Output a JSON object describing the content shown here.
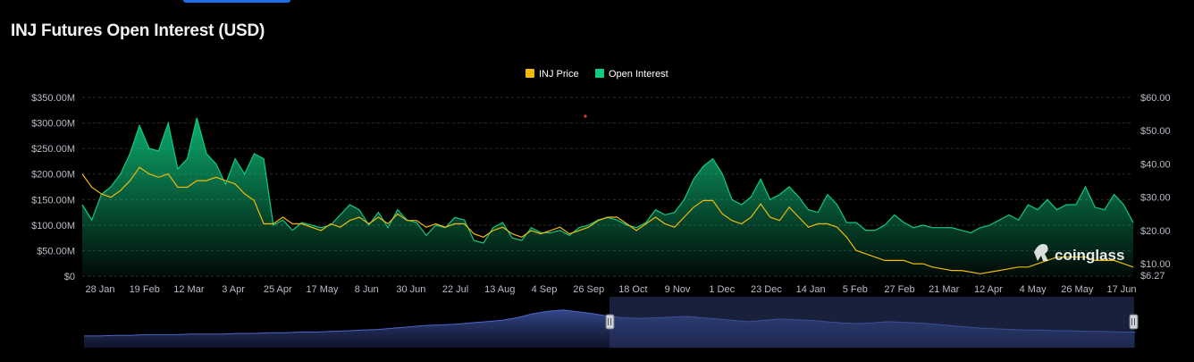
{
  "title": "INJ Futures Open Interest (USD)",
  "watermark": "coinglass",
  "colors": {
    "price": "#f0b90b",
    "open_interest": "#0ecb81",
    "grid": "#2a2d34",
    "navigator_fill": "#1f2a4d"
  },
  "chart_data": {
    "type": "area",
    "legend": [
      "INJ Price",
      "Open Interest"
    ],
    "legend_position": "top-center",
    "x_tick_labels": [
      "28 Jan",
      "19 Feb",
      "12 Mar",
      "3 Apr",
      "25 Apr",
      "17 May",
      "8 Jun",
      "30 Jun",
      "22 Jul",
      "13 Aug",
      "4 Sep",
      "26 Sep",
      "18 Oct",
      "9 Nov",
      "1 Dec",
      "23 Dec",
      "14 Jan",
      "5 Feb",
      "27 Feb",
      "21 Mar",
      "12 Apr",
      "4 May",
      "26 May",
      "17 Jun"
    ],
    "y_left_ticks": [
      "$0",
      "$50.00M",
      "$100.00M",
      "$150.00M",
      "$200.00M",
      "$250.00M",
      "$300.00M",
      "$350.00M"
    ],
    "y_right_ticks": [
      "$6.27",
      "$10.00",
      "$20.00",
      "$30.00",
      "$40.00",
      "$50.00",
      "$60.00"
    ],
    "ylim_left": [
      0,
      350
    ],
    "ylim_right": [
      6.27,
      60
    ],
    "grid": true,
    "series": [
      {
        "name": "Open Interest",
        "axis": "left",
        "unit": "USD millions",
        "values": [
          140,
          110,
          160,
          175,
          200,
          240,
          295,
          250,
          245,
          300,
          210,
          230,
          310,
          240,
          220,
          180,
          230,
          200,
          240,
          230,
          100,
          110,
          90,
          105,
          100,
          95,
          100,
          120,
          140,
          130,
          100,
          125,
          95,
          130,
          110,
          105,
          80,
          100,
          95,
          115,
          110,
          70,
          65,
          95,
          105,
          75,
          70,
          95,
          85,
          85,
          90,
          80,
          95,
          100,
          110,
          115,
          110,
          100,
          95,
          105,
          130,
          120,
          125,
          150,
          190,
          215,
          230,
          200,
          150,
          140,
          155,
          190,
          150,
          160,
          175,
          155,
          130,
          125,
          160,
          140,
          105,
          105,
          90,
          90,
          100,
          120,
          105,
          95,
          100,
          95,
          95,
          95,
          90,
          85,
          95,
          100,
          110,
          120,
          110,
          140,
          130,
          150,
          130,
          140,
          140,
          175,
          135,
          130,
          160,
          140,
          105
        ]
      },
      {
        "name": "INJ Price",
        "axis": "right",
        "unit": "USD",
        "values": [
          37,
          33,
          31,
          30,
          32,
          35,
          39,
          37,
          36,
          37,
          33,
          33,
          35,
          35,
          36,
          35,
          34,
          31,
          29,
          22,
          22,
          24,
          22,
          22,
          21,
          20,
          22,
          21,
          23,
          24,
          22,
          24,
          22,
          25,
          23,
          23,
          21,
          22,
          21,
          22,
          22,
          19,
          18,
          20,
          21,
          19,
          18,
          20,
          19,
          20,
          21,
          19,
          20,
          21,
          23,
          24,
          24,
          22,
          20,
          22,
          24,
          22,
          21,
          24,
          27,
          29,
          29,
          25,
          23,
          22,
          24,
          28,
          24,
          23,
          27,
          24,
          21,
          22,
          22,
          21,
          18,
          14,
          13,
          12,
          11,
          11,
          11,
          10,
          10,
          9,
          8.5,
          8,
          8,
          7.5,
          7,
          7.5,
          8,
          8.5,
          9,
          9,
          10,
          11,
          12,
          12,
          12,
          12,
          11,
          11,
          11,
          10,
          9
        ]
      }
    ],
    "navigator": {
      "values": [
        18,
        18,
        19,
        19,
        20,
        20,
        20,
        21,
        21,
        21,
        22,
        22,
        23,
        23,
        24,
        24,
        25,
        26,
        27,
        28,
        30,
        32,
        34,
        35,
        36,
        38,
        40,
        42,
        46,
        52,
        56,
        58,
        55,
        52,
        48,
        46,
        45,
        46,
        47,
        48,
        46,
        44,
        42,
        40,
        42,
        44,
        43,
        42,
        40,
        38,
        37,
        38,
        40,
        39,
        38,
        36,
        34,
        32,
        30,
        29,
        28,
        27,
        27,
        26,
        26,
        25,
        25,
        24,
        24
      ]
    }
  }
}
